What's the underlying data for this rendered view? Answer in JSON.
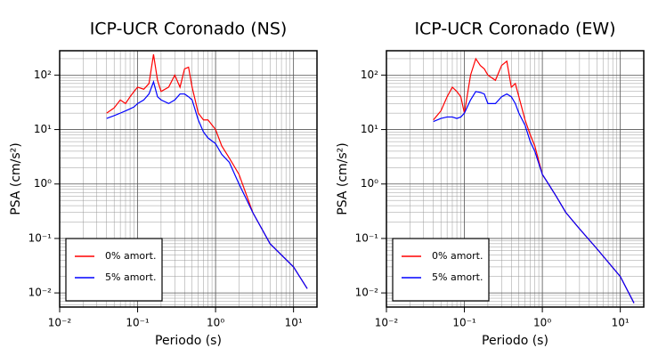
{
  "chart_data": [
    {
      "type": "line",
      "title": "ICP-UCR Coronado (NS)",
      "x_label": "Periodo (s)",
      "y_label": "PSA (cm/s²)",
      "x": [
        0.04,
        0.05,
        0.06,
        0.07,
        0.08,
        0.09,
        0.1,
        0.12,
        0.14,
        0.16,
        0.18,
        0.2,
        0.25,
        0.3,
        0.35,
        0.4,
        0.45,
        0.5,
        0.6,
        0.7,
        0.8,
        1,
        1.2,
        1.5,
        2,
        3,
        5,
        10,
        15
      ],
      "series": [
        {
          "name": "0% amort.",
          "color": "#ff0000",
          "values": [
            20,
            25,
            35,
            30,
            40,
            50,
            60,
            55,
            70,
            240,
            80,
            50,
            60,
            100,
            60,
            130,
            140,
            60,
            20,
            15,
            15,
            10,
            5,
            3,
            1.5,
            0.3,
            0.08,
            0.03,
            0.012
          ]
        },
        {
          "name": "5% amort.",
          "color": "#0000ff",
          "values": [
            16,
            18,
            20,
            22,
            24,
            26,
            30,
            35,
            45,
            75,
            40,
            35,
            30,
            35,
            45,
            45,
            40,
            35,
            15,
            9,
            7,
            5.5,
            3.5,
            2.5,
            1.0,
            0.3,
            0.08,
            0.03,
            0.012
          ]
        }
      ],
      "xlim": [
        0.01,
        20
      ],
      "ylim": [
        0.0055,
        280
      ],
      "x_log": true,
      "y_log": true,
      "grid": true,
      "legend": "lower left",
      "xticks": [
        {
          "value": 0.01,
          "label": "10⁻²"
        },
        {
          "value": 0.1,
          "label": "10⁻¹"
        },
        {
          "value": 1,
          "label": "10⁰"
        },
        {
          "value": 10,
          "label": "10¹"
        }
      ],
      "yticks": [
        {
          "value": 0.01,
          "label": "10⁻²"
        },
        {
          "value": 0.1,
          "label": "10⁻¹"
        },
        {
          "value": 1,
          "label": "10⁰"
        },
        {
          "value": 10,
          "label": "10¹"
        },
        {
          "value": 100,
          "label": "10²"
        }
      ]
    },
    {
      "type": "line",
      "title": "ICP-UCR Coronado (EW)",
      "x_label": "Periodo (s)",
      "y_label": "PSA (cm/s²)",
      "x": [
        0.04,
        0.05,
        0.06,
        0.07,
        0.08,
        0.09,
        0.1,
        0.12,
        0.14,
        0.16,
        0.18,
        0.2,
        0.25,
        0.3,
        0.35,
        0.4,
        0.45,
        0.5,
        0.6,
        0.7,
        0.8,
        1,
        1.2,
        1.5,
        2,
        3,
        5,
        10,
        15
      ],
      "series": [
        {
          "name": "0% amort.",
          "color": "#ff0000",
          "values": [
            15,
            22,
            40,
            60,
            50,
            40,
            20,
            100,
            200,
            150,
            130,
            100,
            80,
            150,
            180,
            60,
            70,
            40,
            15,
            8,
            5,
            1.5,
            1.0,
            0.6,
            0.3,
            0.15,
            0.065,
            0.02,
            0.0065
          ]
        },
        {
          "name": "5% amort.",
          "color": "#0000ff",
          "values": [
            14,
            16,
            17,
            17,
            16,
            17,
            20,
            35,
            50,
            48,
            45,
            30,
            30,
            40,
            45,
            40,
            30,
            20,
            12,
            6,
            4,
            1.5,
            1.0,
            0.6,
            0.3,
            0.15,
            0.065,
            0.02,
            0.0065
          ]
        }
      ],
      "xlim": [
        0.01,
        20
      ],
      "ylim": [
        0.0055,
        280
      ],
      "x_log": true,
      "y_log": true,
      "grid": true,
      "legend": "lower left",
      "xticks": [
        {
          "value": 0.01,
          "label": "10⁻²"
        },
        {
          "value": 0.1,
          "label": "10⁻¹"
        },
        {
          "value": 1,
          "label": "10⁰"
        },
        {
          "value": 10,
          "label": "10¹"
        }
      ],
      "yticks": [
        {
          "value": 0.01,
          "label": "10⁻²"
        },
        {
          "value": 0.1,
          "label": "10⁻¹"
        },
        {
          "value": 1,
          "label": "10⁰"
        },
        {
          "value": 10,
          "label": "10¹"
        },
        {
          "value": 100,
          "label": "10²"
        }
      ]
    }
  ]
}
